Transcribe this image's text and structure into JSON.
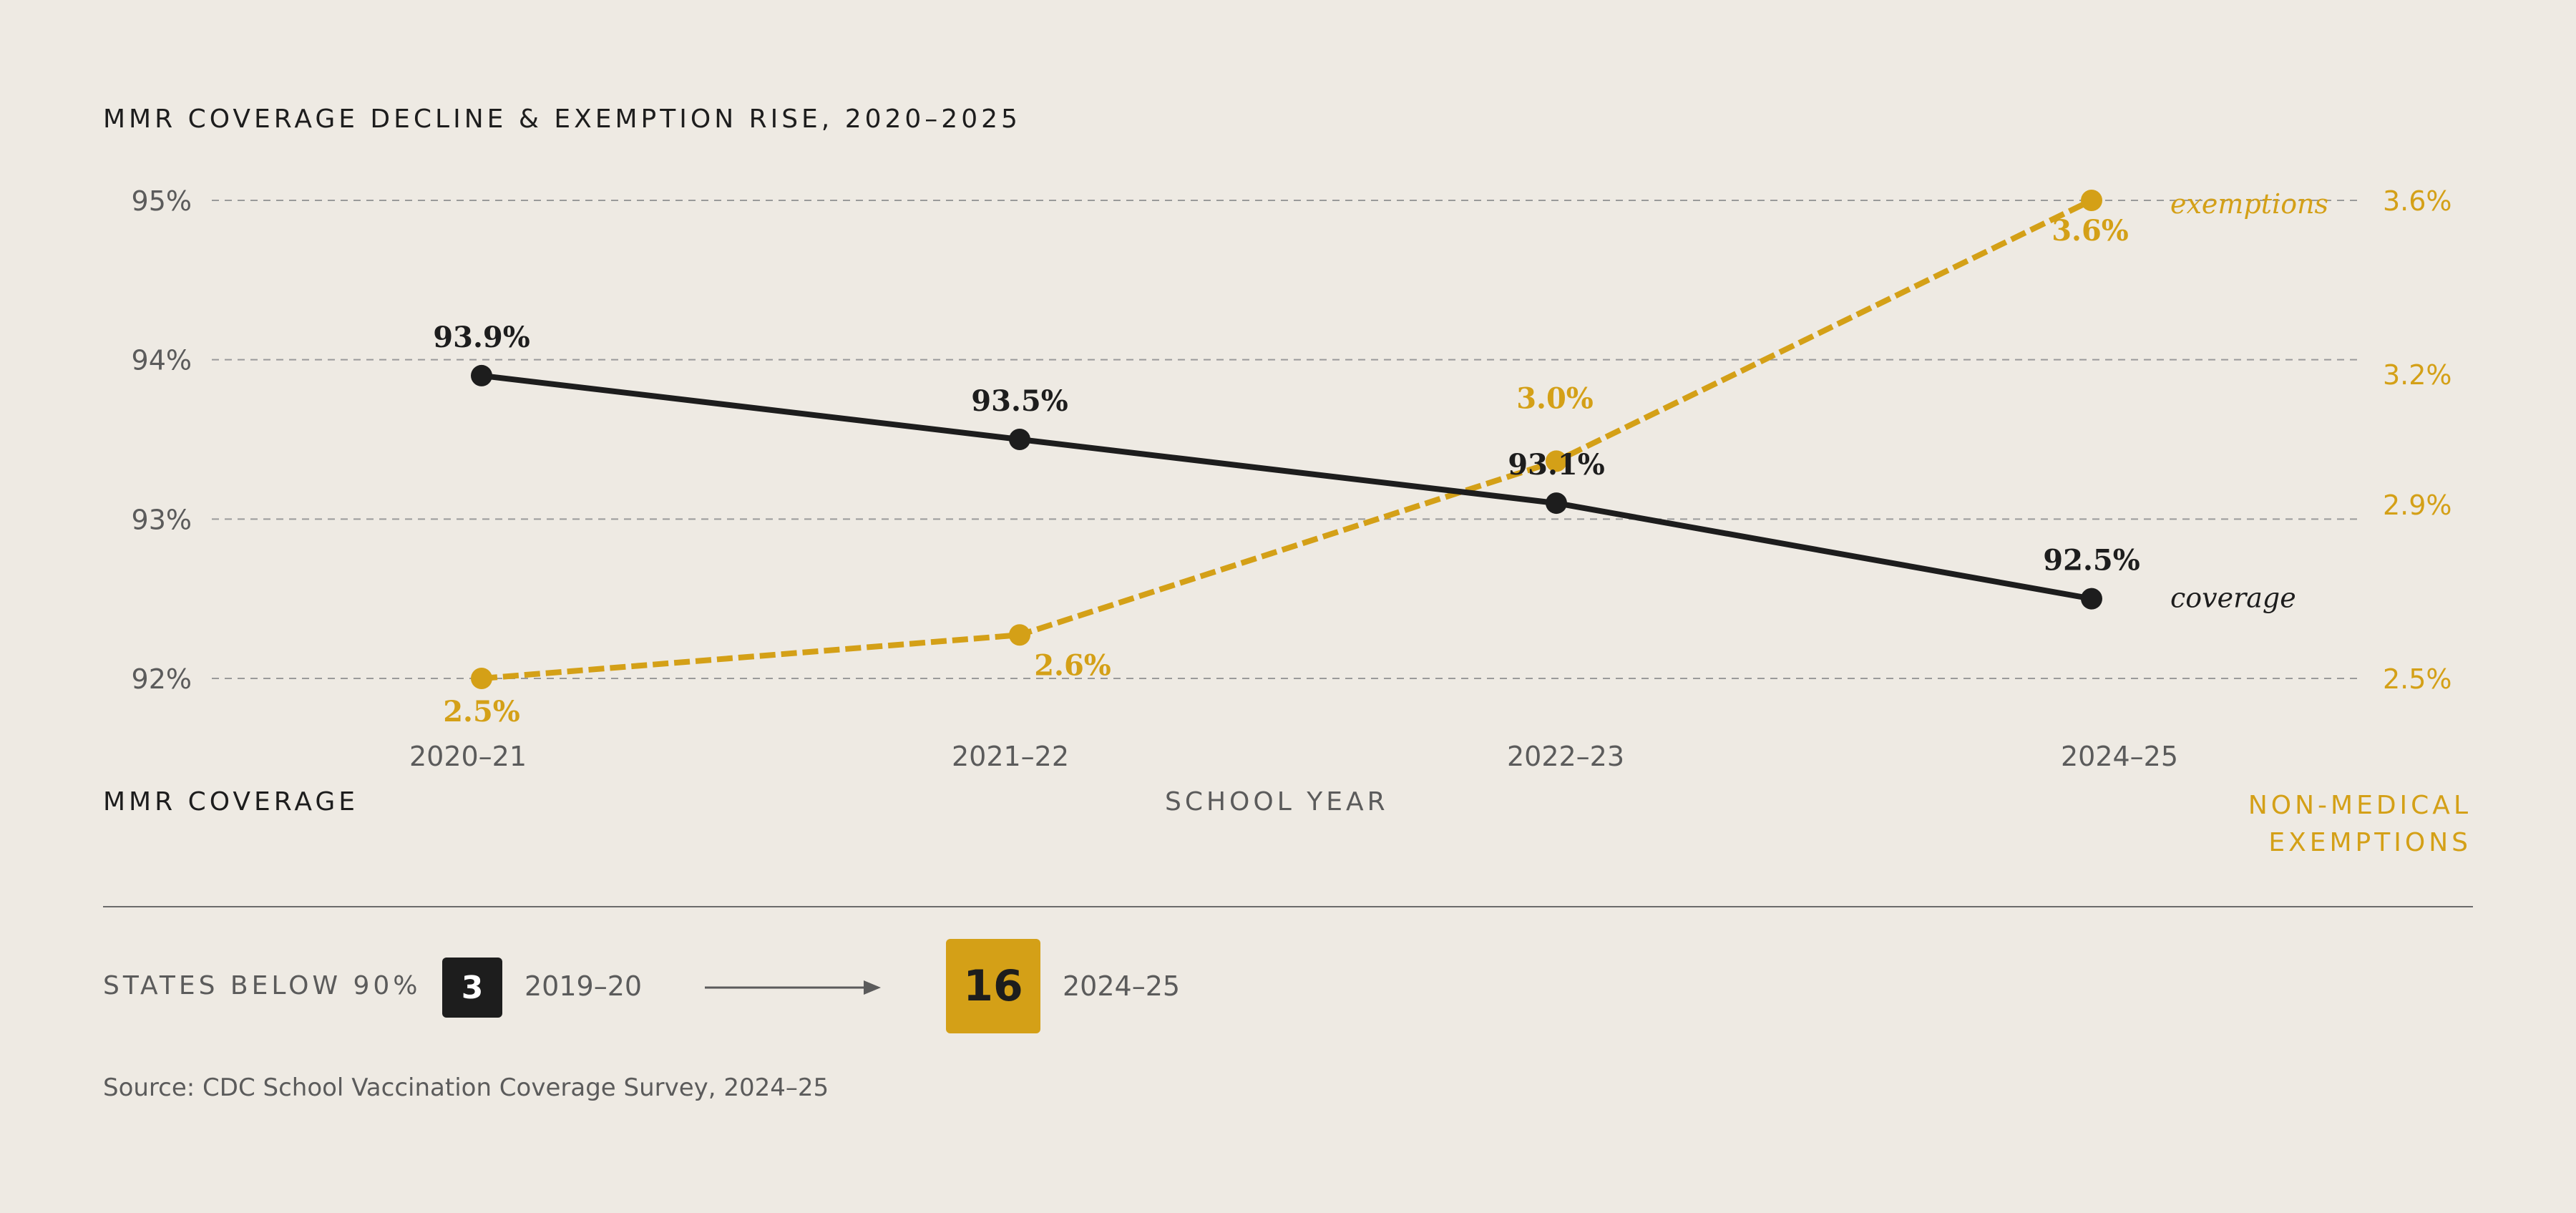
{
  "title": "MMR COVERAGE DECLINE & EXEMPTION RISE, 2020–2025",
  "colors": {
    "background": "#eeeae3",
    "coverage": "#1d1d1d",
    "exemptions": "#d4a017",
    "grid": "#9a9a9a",
    "muted": "#5b5b5b"
  },
  "chart_data": {
    "type": "line",
    "categories": [
      "2020–21",
      "2021–22",
      "2022–23",
      "2024–25"
    ],
    "x_axis_label": "SCHOOL YEAR",
    "left_axis": {
      "label": "MMR COVERAGE",
      "ticks": [
        "95%",
        "94%",
        "93%",
        "92%"
      ],
      "tick_values": [
        95,
        94,
        93,
        92
      ],
      "range": [
        92,
        95
      ]
    },
    "right_axis": {
      "label": "NON-MEDICAL EXEMPTIONS",
      "ticks": [
        "3.6%",
        "3.2%",
        "2.9%",
        "2.5%"
      ],
      "tick_values": [
        3.6,
        3.2,
        2.9,
        2.5
      ],
      "range": [
        2.5,
        3.6
      ]
    },
    "grid": true,
    "series": [
      {
        "name": "coverage",
        "axis": "left",
        "style": "solid",
        "values": [
          93.9,
          93.5,
          93.1,
          92.5
        ],
        "labels": [
          "93.9%",
          "93.5%",
          "93.1%",
          "92.5%"
        ]
      },
      {
        "name": "exemptions",
        "axis": "right",
        "style": "dashed",
        "values": [
          2.5,
          2.6,
          3.0,
          3.6
        ],
        "labels": [
          "2.5%",
          "2.6%",
          "3.0%",
          "3.6%"
        ]
      }
    ]
  },
  "states": {
    "label": "STATES BELOW 90%",
    "from_count": "3",
    "from_year": "2019–20",
    "to_count": "16",
    "to_year": "2024–25"
  },
  "source": "Source: CDC School Vaccination Coverage Survey, 2024–25"
}
